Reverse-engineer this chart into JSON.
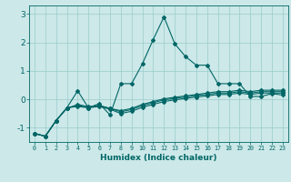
{
  "xlabel": "Humidex (Indice chaleur)",
  "bg_color": "#cce8e8",
  "grid_color": "#99cccc",
  "line_color": "#006666",
  "x": [
    0,
    1,
    2,
    3,
    4,
    5,
    6,
    7,
    8,
    9,
    10,
    11,
    12,
    13,
    14,
    15,
    16,
    17,
    18,
    19,
    20,
    21,
    22,
    23
  ],
  "lines": [
    [
      -1.2,
      -1.3,
      -0.75,
      -0.3,
      0.3,
      -0.3,
      -0.15,
      -0.55,
      0.55,
      0.55,
      1.25,
      2.1,
      2.9,
      1.95,
      1.5,
      1.2,
      1.2,
      0.55,
      0.55,
      0.55,
      0.1,
      0.1,
      0.2,
      0.15
    ],
    [
      -1.2,
      -1.3,
      -0.75,
      -0.3,
      -0.25,
      -0.3,
      -0.25,
      -0.35,
      -0.5,
      -0.42,
      -0.28,
      -0.18,
      -0.08,
      -0.02,
      0.03,
      0.08,
      0.12,
      0.17,
      0.17,
      0.22,
      0.17,
      0.22,
      0.22,
      0.22
    ],
    [
      -1.2,
      -1.3,
      -0.75,
      -0.3,
      -0.22,
      -0.28,
      -0.22,
      -0.32,
      -0.44,
      -0.36,
      -0.22,
      -0.12,
      -0.02,
      0.03,
      0.08,
      0.13,
      0.17,
      0.22,
      0.22,
      0.27,
      0.22,
      0.27,
      0.27,
      0.27
    ],
    [
      -1.2,
      -1.3,
      -0.75,
      -0.32,
      -0.18,
      -0.26,
      -0.22,
      -0.32,
      -0.4,
      -0.32,
      -0.18,
      -0.08,
      0.02,
      0.07,
      0.12,
      0.17,
      0.22,
      0.27,
      0.27,
      0.32,
      0.27,
      0.32,
      0.32,
      0.32
    ]
  ],
  "ylim": [
    -1.5,
    3.3
  ],
  "yticks": [
    -1,
    0,
    1,
    2,
    3
  ],
  "xticks": [
    0,
    1,
    2,
    3,
    4,
    5,
    6,
    7,
    8,
    9,
    10,
    11,
    12,
    13,
    14,
    15,
    16,
    17,
    18,
    19,
    20,
    21,
    22,
    23
  ],
  "xtick_labels": [
    "0",
    "1",
    "2",
    "3",
    "4",
    "5",
    "6",
    "7",
    "8",
    "9",
    "10",
    "11",
    "12",
    "13",
    "14",
    "15",
    "16",
    "17",
    "18",
    "19",
    "20",
    "21",
    "22",
    "23"
  ]
}
